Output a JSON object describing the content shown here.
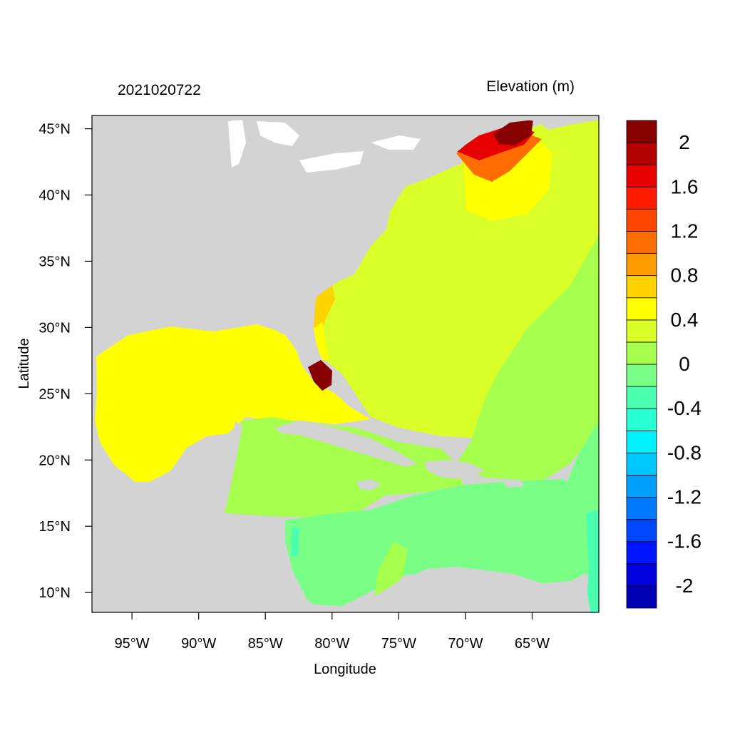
{
  "chart_data": {
    "type": "heatmap",
    "title_left": "2021020722",
    "title_right": "Elevation (m)",
    "xlabel": "Longitude",
    "ylabel": "Latitude",
    "xlim": [
      -98,
      -60
    ],
    "ylim": [
      8.5,
      46
    ],
    "x_ticks": [
      {
        "value": -95,
        "label": "95°W"
      },
      {
        "value": -90,
        "label": "90°W"
      },
      {
        "value": -85,
        "label": "85°W"
      },
      {
        "value": -80,
        "label": "80°W"
      },
      {
        "value": -75,
        "label": "75°W"
      },
      {
        "value": -70,
        "label": "70°W"
      },
      {
        "value": -65,
        "label": "65°W"
      }
    ],
    "y_ticks": [
      {
        "value": 45,
        "label": "45°N"
      },
      {
        "value": 40,
        "label": "40°N"
      },
      {
        "value": 35,
        "label": "35°N"
      },
      {
        "value": 30,
        "label": "30°N"
      },
      {
        "value": 25,
        "label": "25°N"
      },
      {
        "value": 20,
        "label": "20°N"
      },
      {
        "value": 15,
        "label": "15°N"
      },
      {
        "value": 10,
        "label": "10°N"
      }
    ],
    "colorbar": {
      "levels": [
        -2.2,
        -2.0,
        -1.8,
        -1.6,
        -1.4,
        -1.2,
        -1.0,
        -0.8,
        -0.6,
        -0.4,
        -0.2,
        0.0,
        0.2,
        0.4,
        0.6,
        0.8,
        1.0,
        1.2,
        1.4,
        1.6,
        1.8,
        2.0,
        2.2
      ],
      "colors": [
        "#0000b4",
        "#0000dc",
        "#0014ff",
        "#0046ff",
        "#0078ff",
        "#00a0ff",
        "#00c8ff",
        "#00f0ff",
        "#28ffd2",
        "#4affb0",
        "#7aff86",
        "#a6ff4c",
        "#daff28",
        "#ffff00",
        "#ffd200",
        "#ff9c00",
        "#ff6c00",
        "#ff4600",
        "#ff1c00",
        "#e60000",
        "#b40000",
        "#870000"
      ],
      "tick_labels": [
        {
          "value": 2.0,
          "label": "2"
        },
        {
          "value": 1.6,
          "label": "1.6"
        },
        {
          "value": 1.2,
          "label": "1.2"
        },
        {
          "value": 0.8,
          "label": "0.8"
        },
        {
          "value": 0.4,
          "label": "0.4"
        },
        {
          "value": 0.0,
          "label": "0"
        },
        {
          "value": -0.4,
          "label": "-0.4"
        },
        {
          "value": -0.8,
          "label": "-0.8"
        },
        {
          "value": -1.2,
          "label": "-1.2"
        },
        {
          "value": -1.6,
          "label": "-1.6"
        },
        {
          "value": -2.0,
          "label": "-2"
        }
      ]
    },
    "land_color": "#d3d3d3",
    "regions": [
      {
        "name": "atlantic-open-ocean",
        "value": 0.3,
        "color": "#daff28"
      },
      {
        "name": "gulf-of-mexico",
        "value": 0.5,
        "color": "#ffff00"
      },
      {
        "name": "caribbean-north",
        "value": 0.1,
        "color": "#a6ff4c"
      },
      {
        "name": "caribbean-south",
        "value": -0.1,
        "color": "#7aff86"
      },
      {
        "name": "atlantic-east-tropical",
        "value": 0.1,
        "color": "#a6ff4c"
      },
      {
        "name": "atlantic-southeast",
        "value": -0.1,
        "color": "#7aff86"
      },
      {
        "name": "gulf-of-maine-surge",
        "value": 2.1,
        "color": "#870000"
      },
      {
        "name": "south-florida-surge",
        "value": 2.1,
        "color": "#870000"
      }
    ]
  }
}
